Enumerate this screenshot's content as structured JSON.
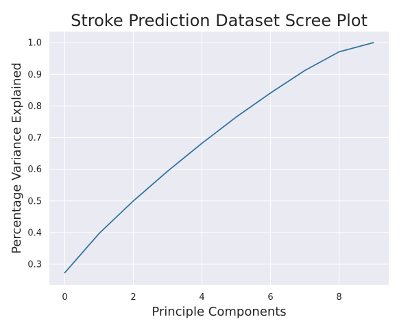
{
  "chart_data": {
    "type": "line",
    "title": "Stroke Prediction Dataset Scree Plot",
    "xlabel": "Principle Components",
    "ylabel": "Percentage Variance Explained",
    "xlim": [
      -0.45,
      9.45
    ],
    "ylim": [
      0.235,
      1.035
    ],
    "xticks": [
      0,
      2,
      4,
      6,
      8
    ],
    "yticks": [
      0.3,
      0.4,
      0.5,
      0.6,
      0.7,
      0.8,
      0.9,
      1.0
    ],
    "grid": true,
    "x": [
      0,
      1,
      2,
      3,
      4,
      5,
      6,
      7,
      8,
      9
    ],
    "series": [
      {
        "values": [
          0.273,
          0.397,
          0.5,
          0.594,
          0.682,
          0.765,
          0.841,
          0.912,
          0.971,
          1.0
        ],
        "color": "#3274a1"
      }
    ]
  },
  "colors": {
    "plot_background": "#eaeaf2",
    "grid": "#ffffff",
    "line": "#3274a1",
    "text": "#262626"
  }
}
